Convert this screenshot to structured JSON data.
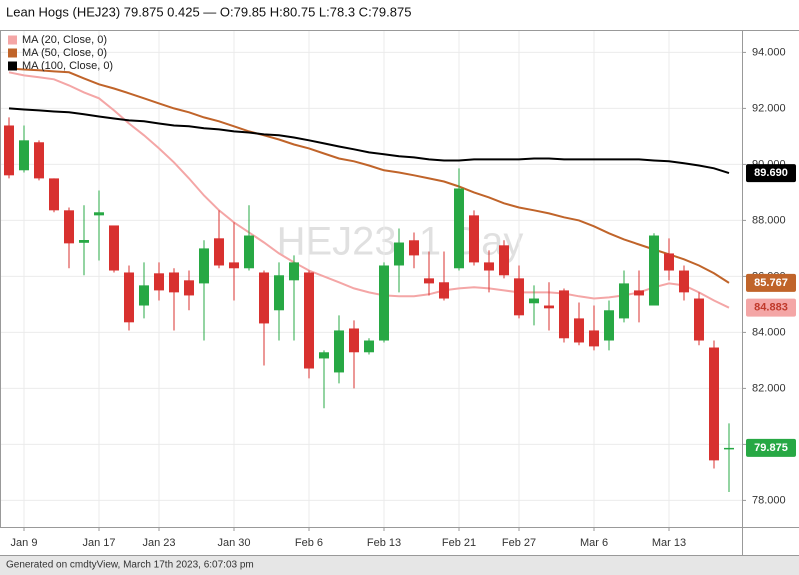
{
  "chart_data": {
    "type": "candlestick",
    "title": "Lean Hogs (HEJ23) 79.875 0.425 — O:79.85 H:80.75 L:78.3 C:79.875",
    "watermark": "HEJ23, 1 Day",
    "footer": "Generated on cmdtyView, March 17th 2023, 6:07:03 pm",
    "categories": [
      null,
      "Jan 9",
      null,
      null,
      null,
      null,
      "Jan 17",
      null,
      null,
      null,
      "Jan 23",
      null,
      null,
      null,
      null,
      "Jan 30",
      null,
      null,
      null,
      null,
      "Feb 6",
      null,
      null,
      null,
      null,
      "Feb 13",
      null,
      null,
      null,
      null,
      "Feb 21",
      null,
      null,
      null,
      "Feb 27",
      null,
      null,
      null,
      null,
      "Mar 6",
      null,
      null,
      null,
      null,
      "Mar 13",
      null,
      null,
      null,
      null
    ],
    "open": [
      91.39,
      89.79,
      90.79,
      89.5,
      88.36,
      87.2,
      88.18,
      87.82,
      86.14,
      84.96,
      86.11,
      86.14,
      85.86,
      85.75,
      87.36,
      86.5,
      86.29,
      86.14,
      84.79,
      85.86,
      86.14,
      83.07,
      82.57,
      84.14,
      83.29,
      83.71,
      86.39,
      87.29,
      85.93,
      85.79,
      86.29,
      88.18,
      86.5,
      87.11,
      85.93,
      85.04,
      84.96,
      85.5,
      84.5,
      84.07,
      83.71,
      84.5,
      85.5,
      84.96,
      86.82,
      86.21,
      85.21,
      83.46,
      79.85
    ],
    "high": [
      91.68,
      91.39,
      90.86,
      89.5,
      88.46,
      88.54,
      89.07,
      87.82,
      86.39,
      86.5,
      86.5,
      86.29,
      86.21,
      87.29,
      88.36,
      87.93,
      88.54,
      86.21,
      86.5,
      86.75,
      86.21,
      83.36,
      84.61,
      84.43,
      83.79,
      86.5,
      87.71,
      87.57,
      86.89,
      86.89,
      89.86,
      88.36,
      86.93,
      87.29,
      86.39,
      85.68,
      85.79,
      85.57,
      85.07,
      84.96,
      85.14,
      86.21,
      86.21,
      87.54,
      87.36,
      86.39,
      85.43,
      83.71,
      80.75
    ],
    "low": [
      89.5,
      89.71,
      89.43,
      88.29,
      86.29,
      86.04,
      86.57,
      86.14,
      84.07,
      84.5,
      85.14,
      84.07,
      84.79,
      83.71,
      86.29,
      85.14,
      86.21,
      82.82,
      83.71,
      83.71,
      82.36,
      81.29,
      82.18,
      82.0,
      83.21,
      83.64,
      85.43,
      86.29,
      85.32,
      85.14,
      86.21,
      86.39,
      85.43,
      85.93,
      84.5,
      84.25,
      84.07,
      83.64,
      83.54,
      83.36,
      83.36,
      84.36,
      84.36,
      84.96,
      85.86,
      85.14,
      83.54,
      79.14,
      78.3
    ],
    "close": [
      89.61,
      90.86,
      89.5,
      88.36,
      87.18,
      87.3,
      88.29,
      86.21,
      84.36,
      85.68,
      85.5,
      85.43,
      85.32,
      87.0,
      86.39,
      86.29,
      87.46,
      84.32,
      86.04,
      86.5,
      82.71,
      83.29,
      84.07,
      83.29,
      83.71,
      86.39,
      87.21,
      86.75,
      85.75,
      85.21,
      89.14,
      86.5,
      86.21,
      86.04,
      84.61,
      85.21,
      84.86,
      83.79,
      83.64,
      83.5,
      84.79,
      85.75,
      85.32,
      87.46,
      86.21,
      85.43,
      83.71,
      79.43,
      79.875
    ],
    "up_color": "#27a844",
    "down_color": "#d8312f",
    "close_label": "79.875",
    "series": [
      {
        "name": "MA (20, Close, 0)",
        "color": "#f4a6a6",
        "last_value_label": "84.883",
        "values": [
          93.29,
          93.18,
          93.11,
          93.04,
          92.82,
          92.57,
          92.36,
          91.93,
          91.46,
          91.04,
          90.57,
          90.07,
          89.5,
          88.89,
          88.36,
          87.93,
          87.57,
          87.21,
          86.82,
          86.5,
          86.21,
          86.0,
          85.79,
          85.57,
          85.43,
          85.32,
          85.29,
          85.29,
          85.36,
          85.5,
          85.57,
          85.61,
          85.57,
          85.5,
          85.43,
          85.43,
          85.43,
          85.39,
          85.29,
          85.21,
          85.25,
          85.32,
          85.43,
          85.61,
          85.75,
          85.68,
          85.43,
          85.14,
          84.883
        ]
      },
      {
        "name": "MA (50, Close, 0)",
        "color": "#c0642a",
        "last_value_label": "85.767",
        "values": [
          93.43,
          93.39,
          93.36,
          93.32,
          93.29,
          93.07,
          92.86,
          92.71,
          92.54,
          92.36,
          92.18,
          92.0,
          91.86,
          91.68,
          91.54,
          91.36,
          91.18,
          91.04,
          90.89,
          90.71,
          90.57,
          90.39,
          90.21,
          90.11,
          89.96,
          89.79,
          89.71,
          89.61,
          89.5,
          89.39,
          89.21,
          89.0,
          88.82,
          88.61,
          88.46,
          88.36,
          88.25,
          88.11,
          88.0,
          87.79,
          87.54,
          87.32,
          87.14,
          86.96,
          86.79,
          86.61,
          86.39,
          86.11,
          85.767
        ]
      },
      {
        "name": "MA (100, Close, 0)",
        "color": "#000000",
        "last_value_label": "89.690",
        "values": [
          92.0,
          91.96,
          91.93,
          91.89,
          91.86,
          91.79,
          91.71,
          91.64,
          91.57,
          91.54,
          91.46,
          91.39,
          91.36,
          91.29,
          91.25,
          91.18,
          91.14,
          91.07,
          91.04,
          90.96,
          90.86,
          90.75,
          90.64,
          90.54,
          90.43,
          90.36,
          90.29,
          90.25,
          90.18,
          90.14,
          90.14,
          90.18,
          90.18,
          90.18,
          90.18,
          90.21,
          90.21,
          90.18,
          90.18,
          90.18,
          90.18,
          90.18,
          90.18,
          90.14,
          90.11,
          90.04,
          89.96,
          89.86,
          89.69
        ]
      }
    ],
    "ylim": [
      77.05,
      94.8
    ],
    "yticks": [
      {
        "value": 78,
        "label": "78.000"
      },
      {
        "value": 80,
        "label": "80.000"
      },
      {
        "value": 82,
        "label": "82.000"
      },
      {
        "value": 84,
        "label": "84.000"
      },
      {
        "value": 86,
        "label": "86.000"
      },
      {
        "value": 88,
        "label": "88.000"
      },
      {
        "value": 90,
        "label": "90.000"
      },
      {
        "value": 92,
        "label": "92.000"
      },
      {
        "value": 94,
        "label": "94.000"
      }
    ],
    "grid": true
  }
}
